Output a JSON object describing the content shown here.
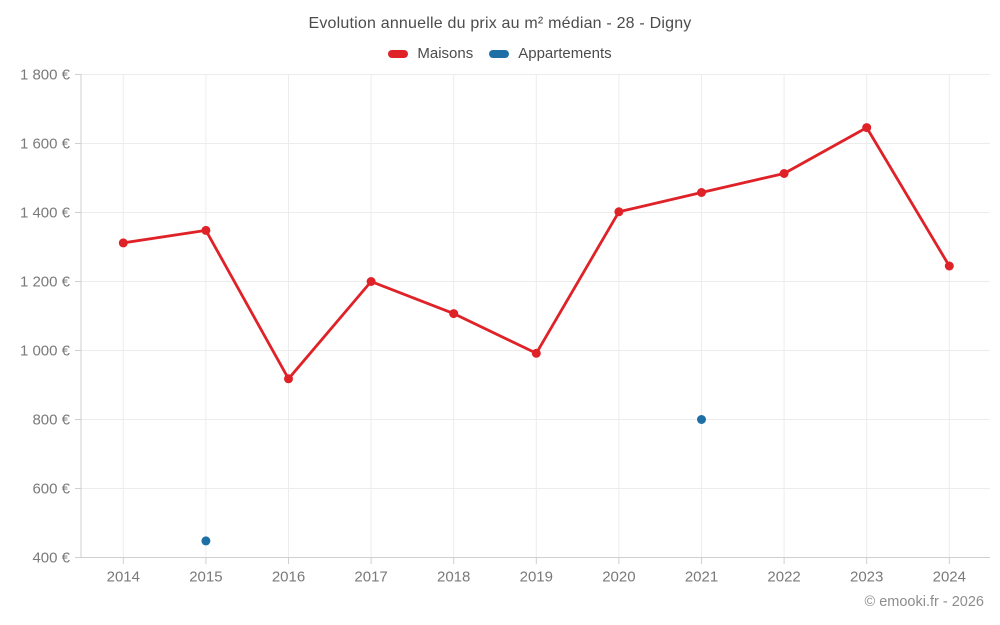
{
  "header": {
    "title": "Evolution annuelle du prix au m² médian - 28 - Digny"
  },
  "footer": {
    "copyright": "© emooki.fr - 2026"
  },
  "chart_data": {
    "type": "line",
    "title": "Evolution annuelle du prix au m² médian - 28 - Digny",
    "x": [
      2014,
      2015,
      2016,
      2017,
      2018,
      2019,
      2020,
      2021,
      2022,
      2023,
      2024
    ],
    "series": [
      {
        "name": "Maisons",
        "color": "#df2228",
        "marker": "circle",
        "line": true,
        "values": [
          1312,
          1348,
          918,
          1200,
          1107,
          992,
          1402,
          1458,
          1513,
          1646,
          1245
        ]
      },
      {
        "name": "Appartements",
        "color": "#1d6fa5",
        "marker": "circle",
        "line": false,
        "values": [
          null,
          448,
          null,
          null,
          null,
          null,
          null,
          800,
          null,
          null,
          null
        ]
      }
    ],
    "ylim": [
      400,
      1800
    ],
    "ytick_step": 200,
    "y_unit": "€",
    "grid": true,
    "legend_position": "top",
    "colors": {
      "grid": "#ececec",
      "axis": "#cfcfcf",
      "tick_text": "#7a7a7a"
    }
  }
}
